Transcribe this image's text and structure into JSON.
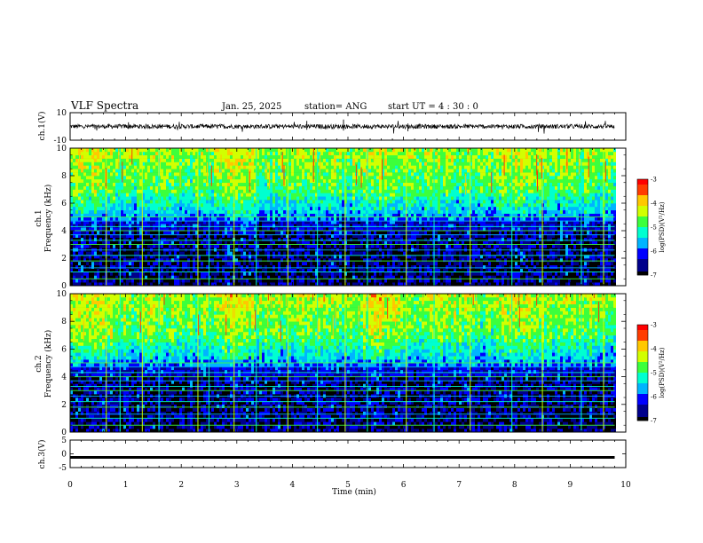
{
  "header": {
    "title": "VLF Spectra",
    "date": "Jan. 25, 2025",
    "station": "station= ANG",
    "start": "start  UT =   4 : 30 : 0"
  },
  "colors": {
    "colormap": [
      "#000000",
      "#00008b",
      "#0000ff",
      "#00b4ff",
      "#00ffd0",
      "#3cff3c",
      "#d2ff00",
      "#ffc800",
      "#ff3c00",
      "#ff0000"
    ]
  },
  "chart_data": [
    {
      "type": "line",
      "name": "ch1-waveform",
      "ylabel": "ch.1(V)",
      "ylim": [
        -10,
        10
      ],
      "yticks": [
        "10",
        "-10"
      ],
      "xlim": [
        0,
        10
      ],
      "baseline": 0,
      "note_amplitude": "low-amplitude noise around 0 V with occasional spikes"
    },
    {
      "type": "heatmap",
      "name": "ch1-spectrogram",
      "ylabel": "ch.1\nFrequency (kHz)",
      "ylabel_line1": "ch.1",
      "ylabel_line2": "Frequency (kHz)",
      "ylim": [
        0,
        10
      ],
      "yticks": [
        "0",
        "2",
        "4",
        "6",
        "8",
        "10"
      ],
      "xlim": [
        0,
        9.8
      ],
      "colorbar": {
        "label": "log(PSD)(V²/Hz)",
        "range": [
          -7,
          -3
        ],
        "ticks": [
          "-3",
          "-4",
          "-5",
          "-6",
          "-7"
        ]
      },
      "horizontal_lines_khz": [
        0.5,
        1.0,
        1.3,
        1.8,
        2.2,
        2.6,
        3.0,
        3.3,
        3.7,
        4.0,
        4.3,
        4.7,
        5.0
      ],
      "vertical_spikes_min": [
        0.65,
        0.9,
        1.3,
        1.6,
        2.3,
        2.5,
        2.95,
        3.35,
        3.92,
        4.45,
        4.95,
        5.35,
        6.05,
        6.55,
        7.2,
        7.95,
        8.5,
        9.2,
        9.6
      ]
    },
    {
      "type": "heatmap",
      "name": "ch2-spectrogram",
      "ylabel": "ch.2\nFrequency (kHz)",
      "ylabel_line1": "ch.2",
      "ylabel_line2": "Frequency (kHz)",
      "ylim": [
        0,
        10
      ],
      "yticks": [
        "0",
        "2",
        "4",
        "6",
        "8",
        "10"
      ],
      "xlim": [
        0,
        9.8
      ],
      "colorbar": {
        "label": "log(PSD)(V²/Hz)",
        "range": [
          -7,
          -3
        ],
        "ticks": [
          "-3",
          "-4",
          "-5",
          "-6",
          "-7"
        ]
      },
      "horizontal_lines_khz": [
        0.5,
        1.0,
        1.3,
        1.8,
        2.2,
        2.6,
        3.0,
        3.3,
        3.7,
        4.0,
        4.3,
        4.7,
        5.0
      ],
      "vertical_spikes_min": [
        0.65,
        0.9,
        1.3,
        1.6,
        2.3,
        2.5,
        2.95,
        3.35,
        3.92,
        4.45,
        4.95,
        5.35,
        6.05,
        6.55,
        7.2,
        7.95,
        8.5,
        9.2,
        9.6
      ]
    },
    {
      "type": "line",
      "name": "ch3-waveform",
      "ylabel": "ch.3(V)",
      "ylim": [
        -5,
        5
      ],
      "yticks": [
        "5",
        "0",
        "-5"
      ],
      "xlim": [
        0,
        10
      ],
      "level": -1.3
    }
  ],
  "xaxis": {
    "label": "Time (min)",
    "range": [
      0,
      10
    ],
    "ticks": [
      "0",
      "1",
      "2",
      "3",
      "4",
      "5",
      "6",
      "7",
      "8",
      "9",
      "10"
    ]
  }
}
